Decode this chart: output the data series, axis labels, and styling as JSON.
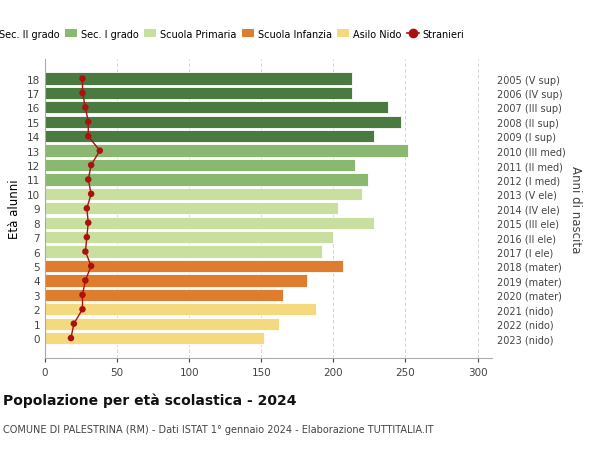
{
  "ages": [
    0,
    1,
    2,
    3,
    4,
    5,
    6,
    7,
    8,
    9,
    10,
    11,
    12,
    13,
    14,
    15,
    16,
    17,
    18
  ],
  "years_labels": [
    "2023 (nido)",
    "2022 (nido)",
    "2021 (nido)",
    "2020 (mater)",
    "2019 (mater)",
    "2018 (mater)",
    "2017 (I ele)",
    "2016 (II ele)",
    "2015 (III ele)",
    "2014 (IV ele)",
    "2013 (V ele)",
    "2012 (I med)",
    "2011 (II med)",
    "2010 (III med)",
    "2009 (I sup)",
    "2008 (II sup)",
    "2007 (III sup)",
    "2006 (IV sup)",
    "2005 (V sup)"
  ],
  "bar_values": [
    152,
    162,
    188,
    165,
    182,
    207,
    192,
    200,
    228,
    203,
    220,
    224,
    215,
    252,
    228,
    247,
    238,
    213,
    213
  ],
  "bar_colors": [
    "#f5d97e",
    "#f5d97e",
    "#f5d97e",
    "#df7d2e",
    "#df7d2e",
    "#df7d2e",
    "#c8dfa0",
    "#c8dfa0",
    "#c8dfa0",
    "#c8dfa0",
    "#c8dfa0",
    "#8ab870",
    "#8ab870",
    "#8ab870",
    "#4a7a40",
    "#4a7a40",
    "#4a7a40",
    "#4a7a40",
    "#4a7a40"
  ],
  "stranieri_values": [
    18,
    20,
    26,
    26,
    28,
    32,
    28,
    29,
    30,
    29,
    32,
    30,
    32,
    38,
    30,
    30,
    28,
    26,
    26
  ],
  "title": "Popolazione per età scolastica - 2024",
  "subtitle": "COMUNE DI PALESTRINA (RM) - Dati ISTAT 1° gennaio 2024 - Elaborazione TUTTITALIA.IT",
  "ylabel": "Età alunni",
  "right_ylabel": "Anni di nascita",
  "xlim": [
    0,
    310
  ],
  "xticks": [
    0,
    50,
    100,
    150,
    200,
    250,
    300
  ],
  "legend_items": [
    {
      "label": "Sec. II grado",
      "color": "#4a7a40"
    },
    {
      "label": "Sec. I grado",
      "color": "#8ab870"
    },
    {
      "label": "Scuola Primaria",
      "color": "#c8dfa0"
    },
    {
      "label": "Scuola Infanzia",
      "color": "#df7d2e"
    },
    {
      "label": "Asilo Nido",
      "color": "#f5d97e"
    },
    {
      "label": "Stranieri",
      "color": "#aa1111"
    }
  ],
  "background_color": "#ffffff",
  "grid_color": "#cccccc",
  "stranieri_line_color": "#aa1111",
  "stranieri_marker_color": "#aa1111"
}
